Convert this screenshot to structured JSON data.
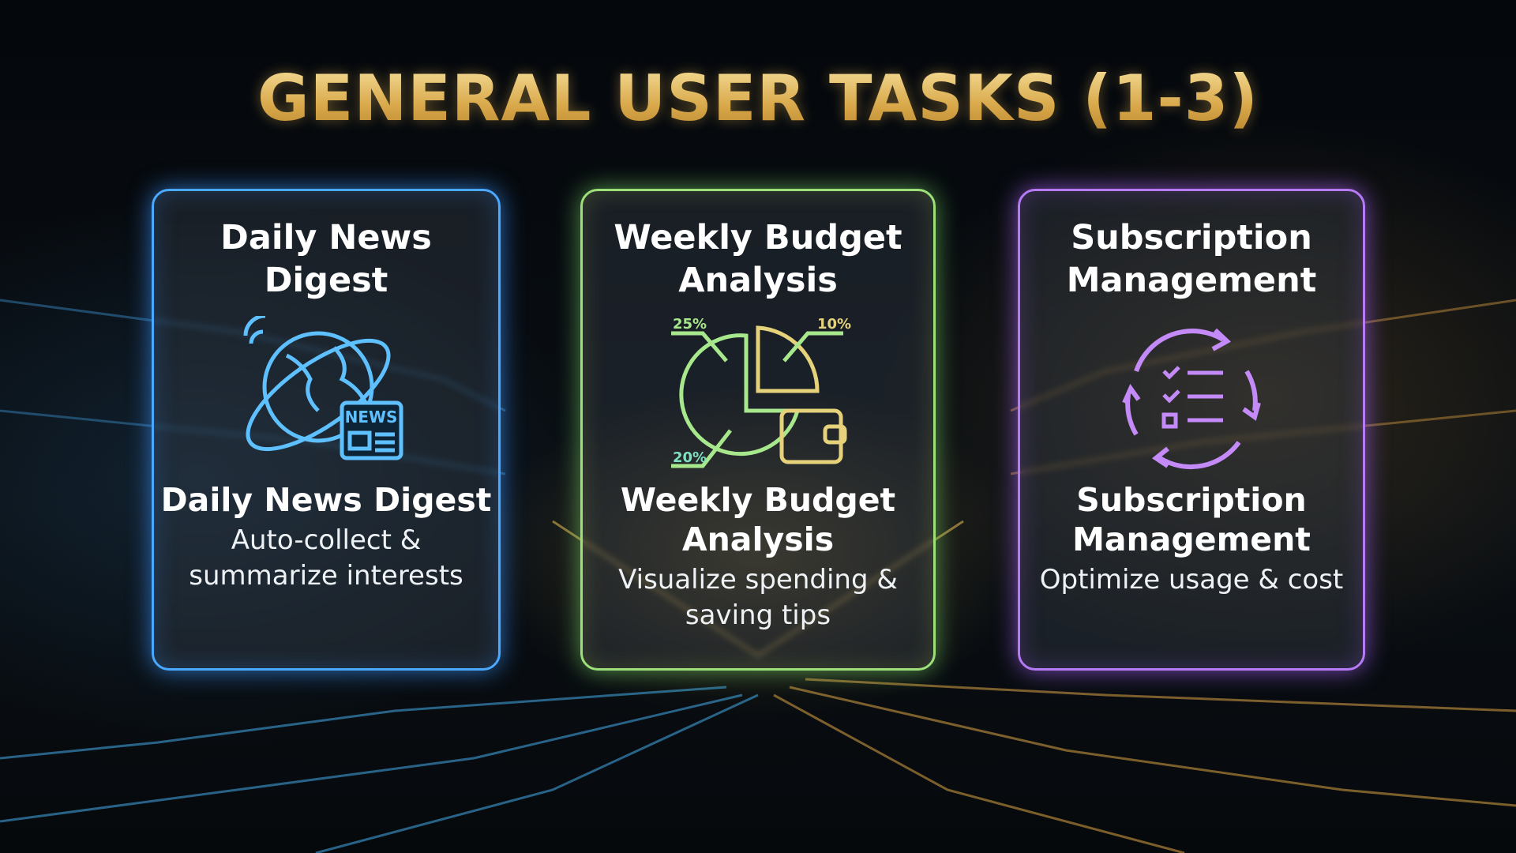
{
  "title": "GENERAL USER TASKS (1-3)",
  "cards": [
    {
      "title": "Daily News Digest",
      "icon": "globe-news-icon",
      "icon_text": "NEWS",
      "subtitle": "Daily News Digest",
      "description": "Auto-collect & summarize interests",
      "accent": "#4aa8ff"
    },
    {
      "title": "Weekly Budget Analysis",
      "icon": "pie-chart-wallet-icon",
      "labels": [
        "25%",
        "10%",
        "20%"
      ],
      "subtitle": "Weekly Budget Analysis",
      "description": "Visualize spending & saving tips",
      "accent": "#9de07a"
    },
    {
      "title": "Subscription Management",
      "icon": "cycle-checklist-icon",
      "subtitle": "Subscription Management",
      "description": "Optimize usage & cost",
      "accent": "#b77af5"
    }
  ]
}
